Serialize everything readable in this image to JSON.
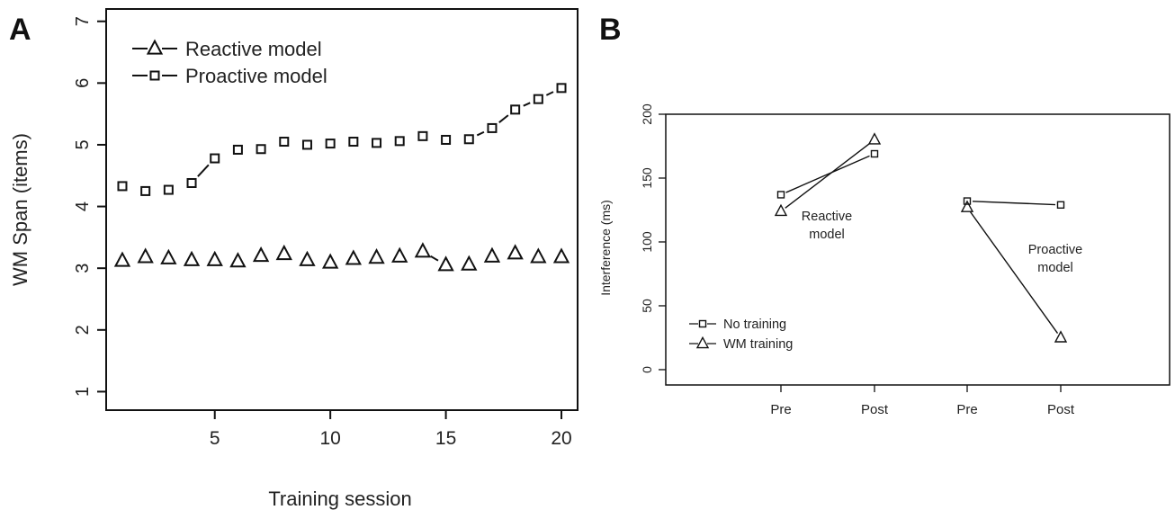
{
  "panels": {
    "a_letter": "A",
    "b_letter": "B"
  },
  "chart_data": [
    {
      "type": "scatter",
      "panel": "A",
      "xlabel": "Training session",
      "ylabel": "WM Span (items)",
      "xlim": [
        0.3,
        20.7
      ],
      "ylim": [
        0.7,
        7.2
      ],
      "xticks": [
        5,
        10,
        15,
        20
      ],
      "yticks": [
        1,
        2,
        3,
        4,
        5,
        6,
        7
      ],
      "legend_position": "top-left",
      "series": [
        {
          "name": "Reactive model",
          "marker": "triangle",
          "x": [
            1,
            2,
            3,
            4,
            5,
            6,
            7,
            8,
            9,
            10,
            11,
            12,
            13,
            14,
            15,
            16,
            17,
            18,
            19,
            20
          ],
          "values": [
            3.12,
            3.18,
            3.16,
            3.13,
            3.13,
            3.11,
            3.2,
            3.23,
            3.13,
            3.09,
            3.15,
            3.17,
            3.19,
            3.27,
            3.05,
            3.06,
            3.19,
            3.24,
            3.18,
            3.18
          ],
          "connect_points": [
            [
              14,
              15
            ]
          ]
        },
        {
          "name": "Proactive model",
          "marker": "square",
          "x": [
            1,
            2,
            3,
            4,
            5,
            6,
            7,
            8,
            9,
            10,
            11,
            12,
            13,
            14,
            15,
            16,
            17,
            18,
            19,
            20
          ],
          "values": [
            4.33,
            4.25,
            4.27,
            4.38,
            4.78,
            4.92,
            4.93,
            5.05,
            5.0,
            5.02,
            5.05,
            5.03,
            5.06,
            5.14,
            5.08,
            5.09,
            5.27,
            5.57,
            5.74,
            5.92
          ],
          "connect_points": [
            [
              4,
              5
            ],
            [
              16,
              17
            ],
            [
              17,
              18
            ],
            [
              18,
              19
            ],
            [
              19,
              20
            ]
          ]
        }
      ]
    },
    {
      "type": "line",
      "panel": "B",
      "ylabel": "Interference (ms)",
      "xlabel": "",
      "categories": [
        "Pre",
        "Post",
        "Pre",
        "Post"
      ],
      "ylim": [
        -12,
        200
      ],
      "yticks": [
        0,
        50,
        100,
        150,
        200
      ],
      "legend_position": "bottom-left",
      "annotations": [
        {
          "lines": [
            "Reactive",
            "model"
          ],
          "x": 2.5,
          "y": 120
        },
        {
          "lines": [
            "Proactive",
            "model"
          ],
          "x": 3.75,
          "y": 90
        }
      ],
      "series": [
        {
          "name": "No training",
          "marker": "square",
          "groups": [
            [
              137,
              169
            ],
            [
              132,
              129
            ]
          ]
        },
        {
          "name": "WM training",
          "marker": "triangle",
          "groups": [
            [
              124,
              180
            ],
            [
              127,
              25
            ]
          ]
        }
      ]
    }
  ]
}
